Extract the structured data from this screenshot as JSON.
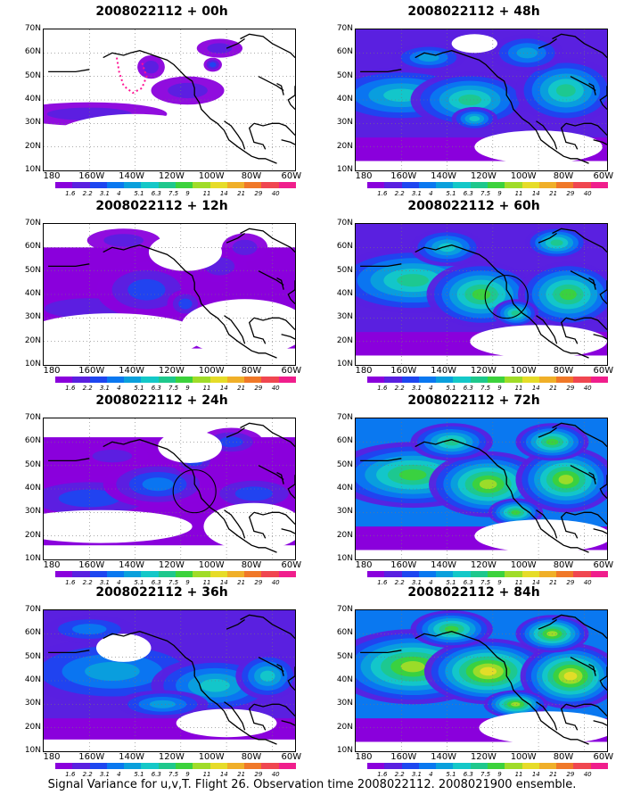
{
  "panels": [
    {
      "title": "2008022112 + 00h",
      "level": 0,
      "circle": false
    },
    {
      "title": "2008022112 + 12h",
      "level": 1,
      "circle": false
    },
    {
      "title": "2008022112 + 24h",
      "level": 2,
      "circle": true
    },
    {
      "title": "2008022112 + 36h",
      "level": 3,
      "circle": false
    },
    {
      "title": "2008022112 + 48h",
      "level": 4,
      "circle": false
    },
    {
      "title": "2008022112 + 60h",
      "level": 5,
      "circle": true
    },
    {
      "title": "2008022112 + 72h",
      "level": 6,
      "circle": false
    },
    {
      "title": "2008022112 + 84h",
      "level": 7,
      "circle": false
    }
  ],
  "lat_labels": [
    "70N",
    "60N",
    "50N",
    "40N",
    "30N",
    "20N",
    "10N"
  ],
  "lon_labels": [
    "180",
    "160W",
    "140W",
    "120W",
    "100W",
    "80W",
    "60W"
  ],
  "colorbar": {
    "labels": [
      "1.6",
      "2.2",
      "3.1",
      "4",
      "5.1",
      "6.3",
      "7.5",
      "9",
      "11",
      "14",
      "21",
      "29",
      "40"
    ],
    "colors": [
      "#8a00dc",
      "#5a20e0",
      "#1e46f0",
      "#0a78f0",
      "#0aa0dc",
      "#14c8c8",
      "#1ec88c",
      "#3cd23c",
      "#a0dc28",
      "#e6dc28",
      "#f0af28",
      "#f07828",
      "#f04650",
      "#f01e8c"
    ]
  },
  "caption": "Signal Variance for u,v,T. Flight 26. Observation time 2008022112. 2008021900 ensemble."
}
